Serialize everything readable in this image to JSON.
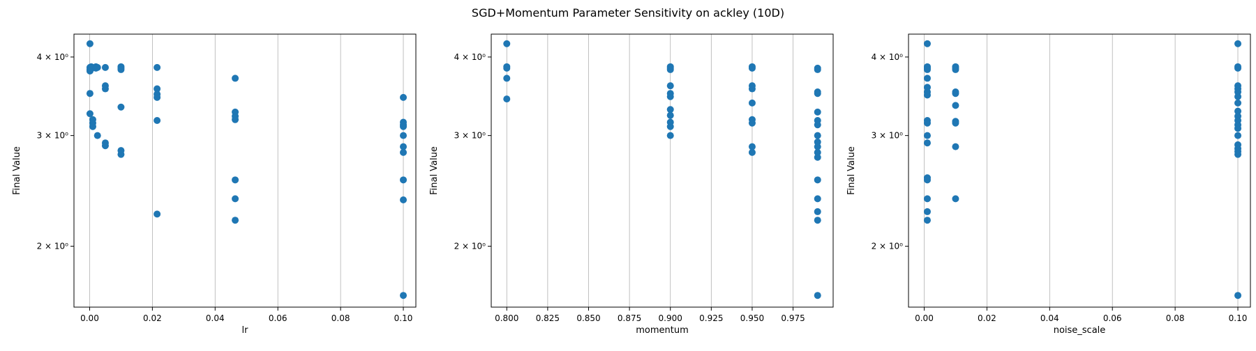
{
  "figure": {
    "title": "SGD+Momentum Parameter Sensitivity on ackley (10D)"
  },
  "chart_data": [
    {
      "type": "scatter",
      "title": "",
      "xlabel": "lr",
      "ylabel": "Final Value",
      "yscale": "log",
      "grid": "x",
      "xlim": [
        -0.005,
        0.104
      ],
      "ylim": [
        1.6,
        4.35
      ],
      "xticks": [
        0.0,
        0.02,
        0.04,
        0.06,
        0.08,
        0.1
      ],
      "xticklabels": [
        "0.00",
        "0.02",
        "0.04",
        "0.06",
        "0.08",
        "0.10"
      ],
      "yticks": [
        2,
        3,
        4
      ],
      "yticklabels": [
        "2 × 10⁰",
        "3 × 10⁰",
        "4 × 10⁰"
      ],
      "color": "#1f77b4",
      "points": [
        [
          0.0001,
          4.2
        ],
        [
          0.0001,
          3.85
        ],
        [
          0.0001,
          3.82
        ],
        [
          0.0001,
          3.8
        ],
        [
          0.0001,
          3.5
        ],
        [
          0.0001,
          3.25
        ],
        [
          0.0005,
          3.86
        ],
        [
          0.0005,
          3.83
        ],
        [
          0.001,
          3.18
        ],
        [
          0.001,
          3.14
        ],
        [
          0.001,
          3.1
        ],
        [
          0.002,
          3.86
        ],
        [
          0.002,
          3.84
        ],
        [
          0.0025,
          3.0
        ],
        [
          0.0025,
          3.85
        ],
        [
          0.005,
          3.85
        ],
        [
          0.005,
          3.6
        ],
        [
          0.005,
          3.56
        ],
        [
          0.005,
          2.92
        ],
        [
          0.005,
          2.89
        ],
        [
          0.01,
          3.86
        ],
        [
          0.01,
          3.84
        ],
        [
          0.01,
          3.82
        ],
        [
          0.01,
          3.33
        ],
        [
          0.01,
          2.84
        ],
        [
          0.01,
          2.8
        ],
        [
          0.0215,
          3.85
        ],
        [
          0.0215,
          3.56
        ],
        [
          0.0215,
          3.49
        ],
        [
          0.0215,
          3.45
        ],
        [
          0.0215,
          3.17
        ],
        [
          0.0215,
          2.25
        ],
        [
          0.0464,
          3.7
        ],
        [
          0.0464,
          3.27
        ],
        [
          0.0464,
          3.22
        ],
        [
          0.0464,
          3.18
        ],
        [
          0.0464,
          2.55
        ],
        [
          0.0464,
          2.38
        ],
        [
          0.0464,
          2.2
        ],
        [
          0.1,
          3.45
        ],
        [
          0.1,
          3.15
        ],
        [
          0.1,
          3.12
        ],
        [
          0.1,
          3.1
        ],
        [
          0.1,
          3.0
        ],
        [
          0.1,
          2.88
        ],
        [
          0.1,
          2.82
        ],
        [
          0.1,
          2.55
        ],
        [
          0.1,
          2.37
        ],
        [
          0.1,
          1.67
        ]
      ]
    },
    {
      "type": "scatter",
      "title": "",
      "xlabel": "momentum",
      "ylabel": "Final Value",
      "yscale": "log",
      "grid": "x",
      "xlim": [
        0.7905,
        0.9995
      ],
      "ylim": [
        1.6,
        4.35
      ],
      "xticks": [
        0.8,
        0.825,
        0.85,
        0.875,
        0.9,
        0.925,
        0.95,
        0.975
      ],
      "xticklabels": [
        "0.800",
        "0.825",
        "0.850",
        "0.875",
        "0.900",
        "0.925",
        "0.950",
        "0.975"
      ],
      "yticks": [
        2,
        3,
        4
      ],
      "yticklabels": [
        "2 × 10⁰",
        "3 × 10⁰",
        "4 × 10⁰"
      ],
      "color": "#1f77b4",
      "points": [
        [
          0.8,
          4.2
        ],
        [
          0.8,
          3.86
        ],
        [
          0.8,
          3.84
        ],
        [
          0.8,
          3.7
        ],
        [
          0.8,
          3.43
        ],
        [
          0.9,
          3.86
        ],
        [
          0.9,
          3.84
        ],
        [
          0.9,
          3.82
        ],
        [
          0.9,
          3.6
        ],
        [
          0.9,
          3.5
        ],
        [
          0.9,
          3.46
        ],
        [
          0.9,
          3.3
        ],
        [
          0.9,
          3.23
        ],
        [
          0.9,
          3.15
        ],
        [
          0.9,
          3.1
        ],
        [
          0.9,
          3.0
        ],
        [
          0.95,
          3.86
        ],
        [
          0.95,
          3.84
        ],
        [
          0.95,
          3.6
        ],
        [
          0.95,
          3.56
        ],
        [
          0.95,
          3.38
        ],
        [
          0.95,
          3.18
        ],
        [
          0.95,
          3.14
        ],
        [
          0.95,
          2.88
        ],
        [
          0.95,
          2.82
        ],
        [
          0.99,
          3.84
        ],
        [
          0.99,
          3.82
        ],
        [
          0.99,
          3.52
        ],
        [
          0.99,
          3.5
        ],
        [
          0.99,
          3.27
        ],
        [
          0.99,
          3.17
        ],
        [
          0.99,
          3.12
        ],
        [
          0.99,
          3.0
        ],
        [
          0.99,
          2.93
        ],
        [
          0.99,
          2.88
        ],
        [
          0.99,
          2.82
        ],
        [
          0.99,
          2.77
        ],
        [
          0.99,
          2.55
        ],
        [
          0.99,
          2.38
        ],
        [
          0.99,
          2.27
        ],
        [
          0.99,
          2.2
        ],
        [
          0.99,
          1.67
        ]
      ]
    },
    {
      "type": "scatter",
      "title": "",
      "xlabel": "noise_scale",
      "ylabel": "Final Value",
      "yscale": "log",
      "grid": "x",
      "xlim": [
        -0.005,
        0.104
      ],
      "ylim": [
        1.6,
        4.35
      ],
      "xticks": [
        0.0,
        0.02,
        0.04,
        0.06,
        0.08,
        0.1
      ],
      "xticklabels": [
        "0.00",
        "0.02",
        "0.04",
        "0.06",
        "0.08",
        "0.10"
      ],
      "yticks": [
        2,
        3,
        4
      ],
      "yticklabels": [
        "2 × 10⁰",
        "3 × 10⁰",
        "4 × 10⁰"
      ],
      "color": "#1f77b4",
      "points": [
        [
          0.001,
          4.2
        ],
        [
          0.001,
          3.86
        ],
        [
          0.001,
          3.84
        ],
        [
          0.001,
          3.82
        ],
        [
          0.001,
          3.7
        ],
        [
          0.001,
          3.58
        ],
        [
          0.001,
          3.52
        ],
        [
          0.001,
          3.48
        ],
        [
          0.001,
          3.17
        ],
        [
          0.001,
          3.14
        ],
        [
          0.001,
          3.0
        ],
        [
          0.001,
          2.92
        ],
        [
          0.001,
          2.57
        ],
        [
          0.001,
          2.55
        ],
        [
          0.001,
          2.38
        ],
        [
          0.001,
          2.27
        ],
        [
          0.001,
          2.2
        ],
        [
          0.01,
          3.86
        ],
        [
          0.01,
          3.84
        ],
        [
          0.01,
          3.82
        ],
        [
          0.01,
          3.52
        ],
        [
          0.01,
          3.5
        ],
        [
          0.01,
          3.35
        ],
        [
          0.01,
          3.16
        ],
        [
          0.01,
          3.14
        ],
        [
          0.01,
          2.88
        ],
        [
          0.01,
          2.38
        ],
        [
          0.1,
          4.2
        ],
        [
          0.1,
          3.86
        ],
        [
          0.1,
          3.84
        ],
        [
          0.1,
          3.6
        ],
        [
          0.1,
          3.56
        ],
        [
          0.1,
          3.52
        ],
        [
          0.1,
          3.46
        ],
        [
          0.1,
          3.38
        ],
        [
          0.1,
          3.28
        ],
        [
          0.1,
          3.22
        ],
        [
          0.1,
          3.17
        ],
        [
          0.1,
          3.12
        ],
        [
          0.1,
          3.08
        ],
        [
          0.1,
          3.0
        ],
        [
          0.1,
          2.9
        ],
        [
          0.1,
          2.86
        ],
        [
          0.1,
          2.83
        ],
        [
          0.1,
          2.8
        ],
        [
          0.1,
          1.67
        ]
      ]
    }
  ]
}
